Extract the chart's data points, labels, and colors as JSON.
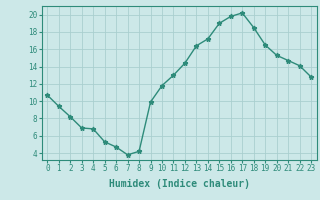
{
  "x": [
    0,
    1,
    2,
    3,
    4,
    5,
    6,
    7,
    8,
    9,
    10,
    11,
    12,
    13,
    14,
    15,
    16,
    17,
    18,
    19,
    20,
    21,
    22,
    23
  ],
  "y": [
    10.7,
    9.4,
    8.2,
    6.9,
    6.8,
    5.3,
    4.7,
    3.8,
    4.2,
    9.9,
    11.8,
    13.0,
    14.4,
    16.4,
    17.2,
    19.0,
    19.8,
    20.2,
    18.5,
    16.5,
    15.3,
    14.7,
    14.1,
    12.8
  ],
  "line_color": "#2e8b7a",
  "marker": "*",
  "bg_color": "#cce8e8",
  "grid_color": "#aacfcf",
  "xlabel": "Humidex (Indice chaleur)",
  "xlim": [
    -0.5,
    23.5
  ],
  "ylim": [
    3.2,
    21.0
  ],
  "yticks": [
    4,
    6,
    8,
    10,
    12,
    14,
    16,
    18,
    20
  ],
  "xticks": [
    0,
    1,
    2,
    3,
    4,
    5,
    6,
    7,
    8,
    9,
    10,
    11,
    12,
    13,
    14,
    15,
    16,
    17,
    18,
    19,
    20,
    21,
    22,
    23
  ],
  "tick_fontsize": 5.5,
  "label_fontsize": 7.0
}
